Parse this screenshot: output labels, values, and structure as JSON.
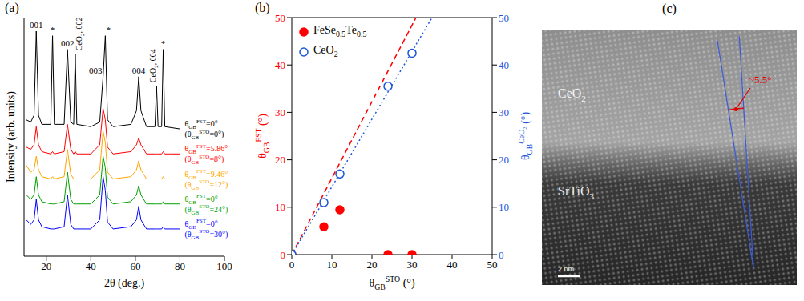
{
  "chart_data": [
    {
      "panel": "(a)",
      "type": "line",
      "xlabel": "2θ (deg.)",
      "ylabel": "Intensity (arb. units)",
      "xlim": [
        10,
        100
      ],
      "xticks": [
        20,
        40,
        60,
        80,
        100
      ],
      "ylim": [
        0,
        105
      ],
      "tick_labels": "x",
      "x": [
        11,
        13,
        14.5,
        15.5,
        16.5,
        18,
        22,
        22.8,
        23.6,
        28,
        29.5,
        31,
        32.3,
        33,
        33.7,
        40,
        44,
        45.5,
        46.5,
        47.5,
        50,
        58,
        60.5,
        61.5,
        62.5,
        65,
        68.8,
        69.5,
        70.2,
        71.8,
        72.5,
        73.2,
        80
      ],
      "peaks": [
        {
          "label": "001",
          "x": 15.5
        },
        {
          "label": "*",
          "x": 22.8
        },
        {
          "label": "002",
          "x": 29.5
        },
        {
          "label": "CeO2, 002",
          "x": 33
        },
        {
          "label": "003",
          "x": 45.5
        },
        {
          "label": "*",
          "x": 46.5
        },
        {
          "label": "004",
          "x": 61.5
        },
        {
          "label": "CeO2, 004",
          "x": 69.5
        },
        {
          "label": "*",
          "x": 72.5
        }
      ],
      "series": [
        {
          "name": [
            {
              "base": "θ",
              "sub": "GB",
              "sup": "FST",
              "rest": "=0°"
            },
            {
              "base": "(θ",
              "sub": "GB",
              "sup": "STO",
              "rest": "=0°)"
            }
          ],
          "color": "#000000",
          "values": [
            60,
            59,
            62,
            99,
            62,
            58,
            58,
            97,
            58,
            58,
            91,
            59,
            58,
            89,
            58,
            57,
            59,
            79,
            97,
            60,
            57,
            58,
            64,
            79,
            64,
            57,
            57,
            75,
            57,
            57,
            91,
            57,
            56
          ]
        },
        {
          "name": [
            {
              "base": "θ",
              "sub": "GB",
              "sup": "FST",
              "rest": "=5.86°"
            },
            {
              "base": "(θ",
              "sub": "GB",
              "sup": "STO",
              "rest": "=8°)"
            }
          ],
          "color": "#ff0000",
          "values": [
            48,
            47,
            49,
            57,
            49,
            46,
            45,
            46,
            45,
            46,
            58,
            47,
            45,
            46,
            45,
            45,
            49,
            65,
            60,
            48,
            45,
            46,
            49,
            52,
            49,
            45,
            45,
            45,
            45,
            45,
            46,
            45,
            45
          ]
        },
        {
          "name": [
            {
              "base": "θ",
              "sub": "GB",
              "sup": "FST",
              "rest": "=9.46°"
            },
            {
              "base": "(θ",
              "sub": "GB",
              "sup": "STO",
              "rest": "=12°)"
            }
          ],
          "color": "#ffa500",
          "values": [
            40,
            37,
            38,
            44,
            38,
            35,
            34,
            35,
            34,
            35,
            47,
            36,
            34,
            34,
            34,
            34,
            38,
            55,
            50,
            37,
            34,
            35,
            38,
            42,
            38,
            34,
            34,
            34,
            34,
            34,
            35,
            34,
            34
          ]
        },
        {
          "name": [
            {
              "base": "θ",
              "sub": "GB",
              "sup": "FST",
              "rest": "=0°"
            },
            {
              "base": "(θ",
              "sub": "GB",
              "sup": "STO",
              "rest": "=24°)"
            }
          ],
          "color": "#00a000",
          "values": [
            27,
            25,
            27,
            35,
            27,
            24,
            23,
            23,
            23,
            24,
            37,
            25,
            23,
            23,
            23,
            23,
            27,
            44,
            39,
            26,
            23,
            24,
            27,
            31,
            27,
            23,
            23,
            23,
            23,
            23,
            24,
            23,
            23
          ]
        },
        {
          "name": [
            {
              "base": "θ",
              "sub": "GB",
              "sup": "FST",
              "rest": "=0°"
            },
            {
              "base": "(θ",
              "sub": "GB",
              "sup": "STO",
              "rest": "=30°)"
            }
          ],
          "color": "#0000ff",
          "values": [
            16,
            14,
            16,
            25,
            16,
            13,
            12,
            12,
            12,
            13,
            27,
            14,
            12,
            12,
            12,
            12,
            16,
            35,
            29,
            15,
            12,
            13,
            16,
            22,
            16,
            12,
            12,
            12,
            12,
            12,
            13,
            12,
            12
          ]
        }
      ]
    },
    {
      "panel": "(b)",
      "type": "scatter",
      "xlabel": {
        "base": "θ",
        "sub": "GB",
        "sup": "STO",
        "rest": " (°)"
      },
      "ylabel": {
        "base": "θ",
        "sub": "GB",
        "sup": "FST",
        "rest": " (°)"
      },
      "y2label": {
        "base": "θ",
        "sub": "GB",
        "sup": "CeO2",
        "rest": " (°)"
      },
      "xlim": [
        0,
        50
      ],
      "xticks": [
        0,
        10,
        20,
        30,
        40,
        50
      ],
      "ylim": [
        0,
        50
      ],
      "yticks": [
        0,
        10,
        20,
        30,
        40,
        50
      ],
      "y2lim": [
        0,
        50
      ],
      "y2ticks": [
        0,
        10,
        20,
        30,
        40,
        50
      ],
      "legend": "upper left",
      "series": [
        {
          "name": "FeSe0.5Te0.5",
          "color": "#ff0000",
          "marker": "circle",
          "x": [
            0,
            8,
            12,
            24,
            30
          ],
          "values": [
            0,
            5.86,
            9.46,
            0,
            0
          ]
        },
        {
          "name": "CeO2",
          "color": "#1a56db",
          "marker": "open_circle",
          "axis": "y2",
          "x": [
            0,
            8,
            12,
            24,
            30
          ],
          "values": [
            0,
            11,
            17,
            35.5,
            42.5
          ]
        },
        {
          "type": "line",
          "color": "#ff0000",
          "line_style": "dashed",
          "x": [
            0,
            31
          ],
          "values": [
            0,
            50
          ]
        },
        {
          "type": "line",
          "color": "#1a56db",
          "line_style": "dotted",
          "axis": "y2",
          "x": [
            0,
            35
          ],
          "values": [
            0,
            50
          ]
        }
      ]
    }
  ],
  "image": {
    "panel": "(c)",
    "labels": [
      "CeO2",
      "SrTiO3"
    ],
    "scale_bar": "2 nm",
    "angle": {
      "value": 5.5,
      "label": "~5.5°"
    }
  }
}
